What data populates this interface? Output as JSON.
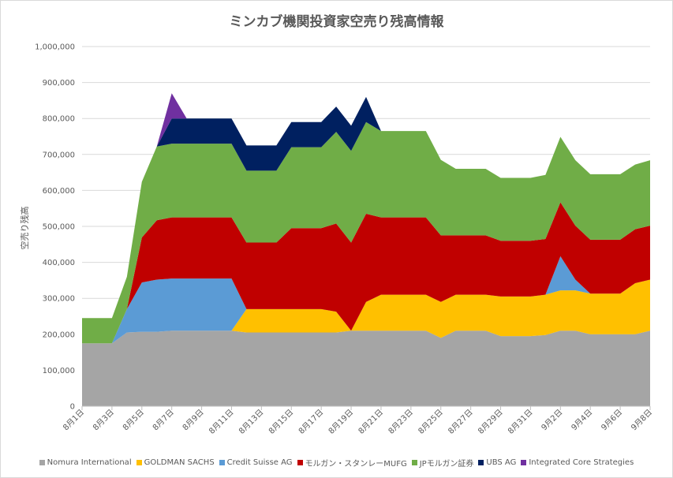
{
  "chart_data": {
    "type": "area",
    "stacked": true,
    "title": "ミンカブ機関投資家空売り残高情報",
    "ylabel": "空売り残高",
    "xlabel": "",
    "ylim": [
      0,
      1000000
    ],
    "y_ticks": [
      "0",
      "100,000",
      "200,000",
      "300,000",
      "400,000",
      "500,000",
      "600,000",
      "700,000",
      "800,000",
      "900,000",
      "1,000,000"
    ],
    "grid": true,
    "legend_position": "bottom",
    "x_tick_labels": [
      "8月1日",
      "8月3日",
      "8月5日",
      "8月7日",
      "8月9日",
      "8月11日",
      "8月13日",
      "8月15日",
      "8月17日",
      "8月19日",
      "8月21日",
      "8月23日",
      "8月25日",
      "8月27日",
      "8月29日",
      "8月31日",
      "9月2日",
      "9月4日",
      "9月6日",
      "9月8日"
    ],
    "x": [
      "8月1日",
      "8月2日",
      "8月3日",
      "8月4日",
      "8月5日",
      "8月6日",
      "8月7日",
      "8月8日",
      "8月9日",
      "8月10日",
      "8月11日",
      "8月12日",
      "8月13日",
      "8月14日",
      "8月15日",
      "8月16日",
      "8月17日",
      "8月18日",
      "8月19日",
      "8月20日",
      "8月21日",
      "8月22日",
      "8月23日",
      "8月24日",
      "8月25日",
      "8月26日",
      "8月27日",
      "8月28日",
      "8月29日",
      "8月30日",
      "8月31日",
      "9月1日",
      "9月2日",
      "9月3日",
      "9月4日",
      "9月5日",
      "9月6日",
      "9月7日",
      "9月8日"
    ],
    "series": [
      {
        "name": "Nomura International",
        "color": "#a5a5a5",
        "values": [
          175000,
          175000,
          175000,
          205000,
          207000,
          207000,
          210000,
          210000,
          210000,
          210000,
          210000,
          205000,
          205000,
          205000,
          205000,
          205000,
          205000,
          205000,
          210000,
          210000,
          210000,
          210000,
          210000,
          210000,
          190000,
          210000,
          210000,
          210000,
          195000,
          195000,
          195000,
          198000,
          210000,
          210000,
          200000,
          200000,
          200000,
          200000,
          210000
        ]
      },
      {
        "name": "GOLDMAN SACHS",
        "color": "#ffc000",
        "values": [
          0,
          0,
          0,
          0,
          0,
          0,
          0,
          0,
          0,
          0,
          0,
          65000,
          65000,
          65000,
          65000,
          65000,
          65000,
          58000,
          0,
          80000,
          100000,
          100000,
          100000,
          100000,
          100000,
          100000,
          100000,
          100000,
          110000,
          110000,
          110000,
          112000,
          112000,
          112000,
          113000,
          113000,
          113000,
          142000,
          142000
        ]
      },
      {
        "name": "Credit Suisse AG",
        "color": "#5b9bd5",
        "values": [
          0,
          0,
          0,
          65000,
          137000,
          145000,
          145000,
          145000,
          145000,
          145000,
          145000,
          0,
          0,
          0,
          0,
          0,
          0,
          0,
          0,
          0,
          0,
          0,
          0,
          0,
          0,
          0,
          0,
          0,
          0,
          0,
          0,
          0,
          95000,
          30000,
          0,
          0,
          0,
          0,
          0
        ]
      },
      {
        "name": "モルガン・スタンレーMUFG",
        "color": "#c00000",
        "values": [
          0,
          0,
          0,
          0,
          125000,
          165000,
          170000,
          170000,
          170000,
          170000,
          170000,
          185000,
          185000,
          185000,
          225000,
          225000,
          225000,
          245000,
          245000,
          245000,
          215000,
          215000,
          215000,
          215000,
          185000,
          165000,
          165000,
          165000,
          155000,
          155000,
          155000,
          155000,
          150000,
          150000,
          150000,
          150000,
          150000,
          150000,
          150000
        ]
      },
      {
        "name": "JPモルガン証券",
        "color": "#70ad47",
        "values": [
          70000,
          70000,
          70000,
          90000,
          155000,
          205000,
          205000,
          205000,
          205000,
          205000,
          205000,
          200000,
          200000,
          200000,
          225000,
          225000,
          225000,
          255000,
          255000,
          255000,
          240000,
          240000,
          240000,
          240000,
          210000,
          185000,
          185000,
          185000,
          175000,
          175000,
          175000,
          178000,
          182000,
          182000,
          182000,
          182000,
          182000,
          180000,
          182000
        ]
      },
      {
        "name": "UBS AG",
        "color": "#002060",
        "values": [
          0,
          0,
          0,
          0,
          0,
          0,
          70000,
          70000,
          70000,
          70000,
          70000,
          70000,
          70000,
          70000,
          70000,
          70000,
          70000,
          70000,
          70000,
          70000,
          0,
          0,
          0,
          0,
          0,
          0,
          0,
          0,
          0,
          0,
          0,
          0,
          0,
          0,
          0,
          0,
          0,
          0,
          0
        ]
      },
      {
        "name": "Integrated Core Strategies",
        "color": "#7030a0",
        "values": [
          0,
          0,
          0,
          0,
          0,
          0,
          70000,
          0,
          0,
          0,
          0,
          0,
          0,
          0,
          0,
          0,
          0,
          0,
          0,
          0,
          0,
          0,
          0,
          0,
          0,
          0,
          0,
          0,
          0,
          0,
          0,
          0,
          0,
          0,
          0,
          0,
          0,
          0,
          0
        ]
      }
    ]
  }
}
